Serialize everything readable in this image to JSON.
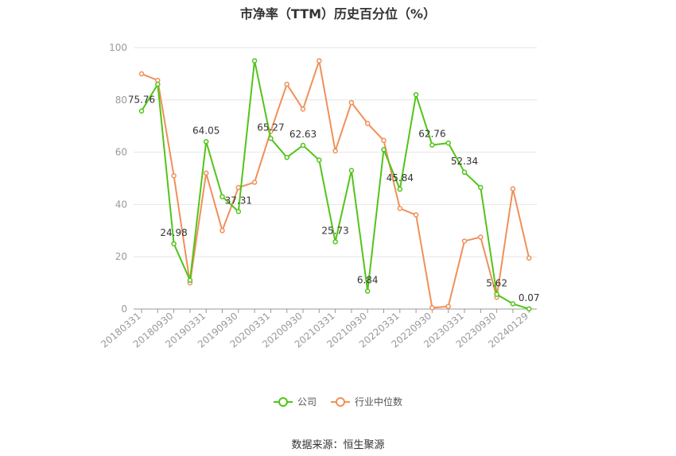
{
  "chart_data": {
    "type": "line",
    "title": "市净率（TTM）历史百分位（%）",
    "categories": [
      "20180331",
      "20180630",
      "20180930",
      "20181231",
      "20190331",
      "20190630",
      "20190930",
      "20191231",
      "20200331",
      "20200630",
      "20200930",
      "20201231",
      "20210331",
      "20210630",
      "20210930",
      "20211231",
      "20220331",
      "20220630",
      "20220930",
      "20221231",
      "20230331",
      "20230630",
      "20230930",
      "20231231",
      "20240129"
    ],
    "x_tick_labels": [
      "20180331",
      "20180930",
      "20190331",
      "20190930",
      "20200331",
      "20200930",
      "20210331",
      "20210930",
      "20220331",
      "20220930",
      "20230331",
      "20230930",
      "20240129"
    ],
    "ylim": [
      0,
      100
    ],
    "y_ticks": [
      0,
      20,
      40,
      60,
      80,
      100
    ],
    "grid": true,
    "series": [
      {
        "name": "公司",
        "color": "#52c41a",
        "values": [
          75.76,
          86.0,
          24.98,
          11.0,
          64.05,
          43.0,
          37.31,
          95.0,
          65.27,
          58.0,
          62.63,
          57.0,
          25.73,
          53.0,
          6.84,
          61.0,
          45.84,
          82.0,
          62.76,
          63.5,
          52.34,
          46.5,
          5.62,
          2.0,
          0.07
        ],
        "labels": {
          "0": "75.76",
          "2": "24.98",
          "4": "64.05",
          "6": "37.31",
          "8": "65.27",
          "10": "62.63",
          "12": "25.73",
          "14": "6.84",
          "16": "45.84",
          "18": "62.76",
          "20": "52.34",
          "22": "5.62",
          "24": "0.07"
        }
      },
      {
        "name": "行业中位数",
        "color": "#f0905a",
        "values": [
          90.0,
          87.5,
          51.0,
          10.0,
          52.0,
          30.0,
          46.5,
          48.5,
          68.0,
          86.0,
          76.5,
          95.0,
          60.5,
          79.0,
          71.0,
          64.5,
          38.5,
          36.0,
          0.5,
          1.0,
          26.0,
          27.5,
          4.5,
          46.0,
          19.5
        ]
      }
    ],
    "legend_position": "bottom-center"
  },
  "source": "数据来源：恒生聚源"
}
